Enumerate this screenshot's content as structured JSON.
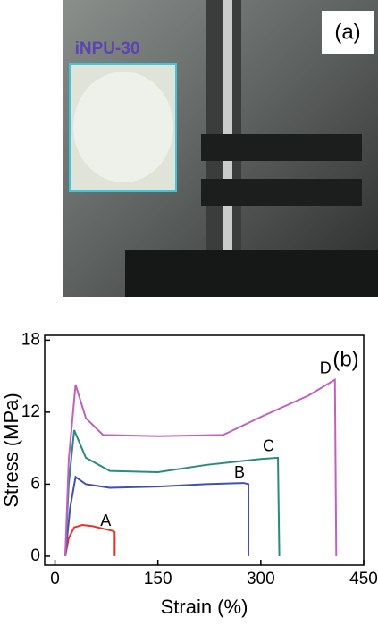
{
  "panel_a": {
    "label": "(a)",
    "inset_label": "iNPU-30"
  },
  "chart_data": {
    "type": "line",
    "panel_label": "(b)",
    "x_label": "Strain (%)",
    "y_label": "Stress (MPa)",
    "xlim": [
      -15,
      450
    ],
    "ylim": [
      -0.75,
      18.4
    ],
    "xticks": [
      0,
      150,
      300,
      450
    ],
    "yticks": [
      0,
      6,
      12,
      18
    ],
    "series": [
      {
        "name": "A",
        "color": "#e8322b",
        "x": [
          15,
          20,
          28,
          40,
          55,
          70,
          85,
          87,
          87
        ],
        "values": [
          0,
          1.5,
          2.4,
          2.6,
          2.5,
          2.3,
          2.1,
          2.0,
          0
        ]
      },
      {
        "name": "B",
        "color": "#4450b0",
        "x": [
          15,
          22,
          30,
          45,
          80,
          150,
          220,
          275,
          282,
          282
        ],
        "values": [
          0,
          4,
          6.6,
          6.0,
          5.7,
          5.8,
          6.0,
          6.1,
          6.0,
          0
        ]
      },
      {
        "name": "C",
        "color": "#2a8a7e",
        "x": [
          15,
          20,
          28,
          45,
          80,
          150,
          220,
          300,
          325,
          327
        ],
        "values": [
          0,
          6,
          10.5,
          8.2,
          7.1,
          7.0,
          7.6,
          8.1,
          8.2,
          0
        ]
      },
      {
        "name": "D",
        "color": "#c060c0",
        "x": [
          15,
          20,
          30,
          45,
          70,
          150,
          245,
          300,
          370,
          408,
          410
        ],
        "values": [
          0,
          8,
          14.3,
          11.5,
          10.1,
          10.0,
          10.1,
          11.6,
          13.4,
          14.7,
          0
        ]
      }
    ]
  }
}
